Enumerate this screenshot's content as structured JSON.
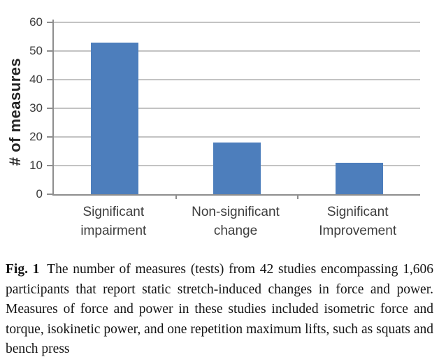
{
  "figure": {
    "caption_label": "Fig. 1",
    "caption_text": "The number of measures (tests) from 42 studies encompassing 1,606 participants that report static stretch-induced changes in force and power. Measures of force and power in these studies included isometric force and torque, isokinetic power, and one repetition maximum lifts, such as squats and bench press"
  },
  "chart_data": {
    "type": "bar",
    "categories": [
      "Significant impairment",
      "Non-significant change",
      "Significant Improvement"
    ],
    "values": [
      53,
      18,
      11
    ],
    "title": "",
    "xlabel": "",
    "ylabel": "# of measures",
    "ylim": [
      0,
      60
    ],
    "yticks": [
      0,
      10,
      20,
      30,
      40,
      50,
      60
    ],
    "grid": true,
    "legend": "none",
    "bar_color": "#4D7EBC"
  },
  "colors": {
    "bar": "#4D7EBC",
    "gridline": "#c3c3c3",
    "axis": "#8e8e8e",
    "tick_label": "#3d3d3d",
    "category_label": "#3d3d3d",
    "ylabel": "#262626",
    "caption": "#141414",
    "background": "#ffffff"
  }
}
